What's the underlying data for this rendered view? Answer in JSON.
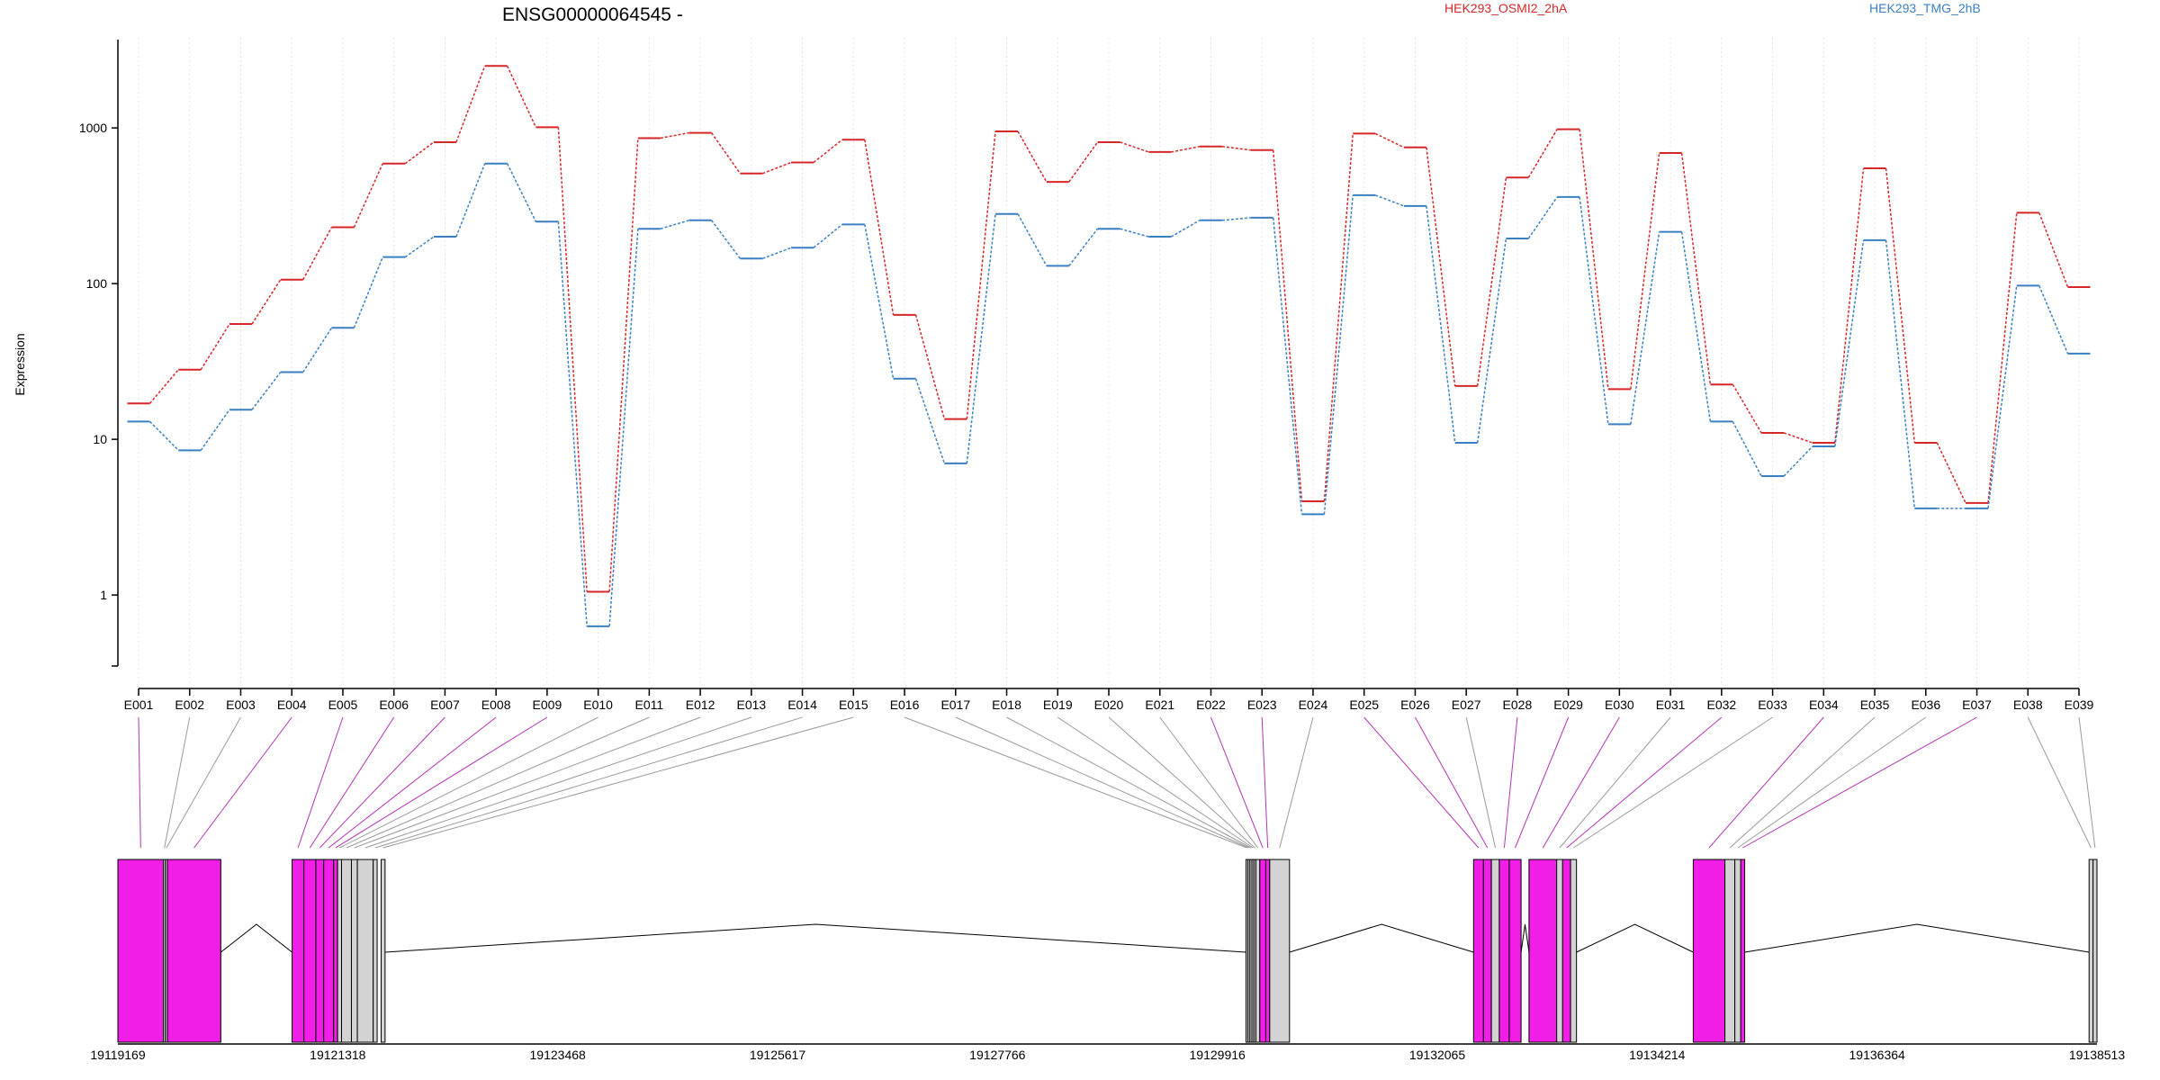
{
  "chart_data": {
    "type": "line",
    "title": "ENSG00000064545 -",
    "ylabel": "Expression",
    "xlabel": "",
    "yscale": "log",
    "ylim": [
      0.35,
      3500
    ],
    "yticks": [
      1,
      10,
      100,
      1000
    ],
    "ytick_labels": [
      "1",
      "10",
      "100",
      "1000"
    ],
    "grid": "vertical dotted lines at exon positions",
    "legend": "top, two entries",
    "categories": [
      "E001",
      "E002",
      "E003",
      "E004",
      "E005",
      "E006",
      "E007",
      "E008",
      "E009",
      "E010",
      "E011",
      "E012",
      "E013",
      "E014",
      "E015",
      "E016",
      "E017",
      "E018",
      "E019",
      "E020",
      "E021",
      "E022",
      "E023",
      "E024",
      "E025",
      "E026",
      "E027",
      "E028",
      "E029",
      "E030",
      "E031",
      "E032",
      "E033",
      "E034",
      "E035",
      "E036",
      "E037",
      "E038",
      "E039"
    ],
    "series": [
      {
        "name": "HEK293_OSMI2_2hA",
        "color": "#d62728",
        "values": [
          17,
          28,
          55,
          106,
          230,
          590,
          810,
          2500,
          1010,
          1.05,
          860,
          930,
          510,
          600,
          840,
          63,
          13.5,
          950,
          450,
          810,
          700,
          760,
          720,
          4,
          920,
          750,
          22,
          480,
          980,
          21,
          690,
          22.5,
          11,
          9.5,
          550,
          9.5,
          3.9,
          285,
          95
        ]
      },
      {
        "name": "HEK293_TMG_2hB",
        "color": "#3a7fc1",
        "values": [
          13,
          8.5,
          15.5,
          27,
          52,
          148,
          200,
          590,
          250,
          0.63,
          225,
          255,
          145,
          170,
          240,
          24.5,
          7,
          280,
          130,
          225,
          200,
          255,
          265,
          3.3,
          370,
          315,
          9.5,
          195,
          360,
          12.5,
          215,
          13,
          5.8,
          9,
          190,
          3.6,
          3.6,
          97,
          35.5
        ]
      }
    ],
    "gene_model": {
      "coordinate_labels": [
        "19119169",
        "19121318",
        "19123468",
        "19125617",
        "19127766",
        "19129916",
        "19132065",
        "19134214",
        "19136364",
        "19138513"
      ],
      "exon_colors": {
        "highlight": "#f01ee6",
        "normal": "#d3d3d3",
        "border": "#000000",
        "link_highlight": "#b233b2",
        "link_normal": "#999999"
      },
      "exon_highlight_flags": [
        true,
        false,
        false,
        true,
        true,
        true,
        true,
        true,
        true,
        false,
        false,
        false,
        false,
        false,
        false,
        false,
        false,
        false,
        false,
        false,
        false,
        true,
        true,
        false,
        true,
        true,
        false,
        true,
        true,
        true,
        false,
        true,
        false,
        true,
        false,
        false,
        true,
        false,
        false
      ]
    }
  }
}
